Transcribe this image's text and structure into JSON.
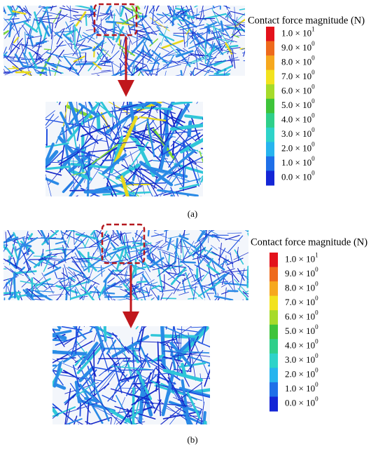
{
  "panels": [
    {
      "label": "(a)",
      "legend": {
        "title": "Contact force magnitude (N)",
        "entries": [
          {
            "mantissa": "1.0 × 10",
            "exponent": "1",
            "color": "#e3121b"
          },
          {
            "mantissa": "9.0 × 10",
            "exponent": "0",
            "color": "#ee6a1c"
          },
          {
            "mantissa": "8.0 × 10",
            "exponent": "0",
            "color": "#f6a81e"
          },
          {
            "mantissa": "7.0 × 10",
            "exponent": "0",
            "color": "#f2e21e"
          },
          {
            "mantissa": "6.0 × 10",
            "exponent": "0",
            "color": "#a6db2a"
          },
          {
            "mantissa": "5.0 × 10",
            "exponent": "0",
            "color": "#3ec43a"
          },
          {
            "mantissa": "4.0 × 10",
            "exponent": "0",
            "color": "#2fcf8a"
          },
          {
            "mantissa": "3.0 × 10",
            "exponent": "0",
            "color": "#2ed3c9"
          },
          {
            "mantissa": "2.0 × 10",
            "exponent": "0",
            "color": "#27b4ee"
          },
          {
            "mantissa": "1.0 × 10",
            "exponent": "0",
            "color": "#1f6fe8"
          },
          {
            "mantissa": "0.0 × 10",
            "exponent": "0",
            "color": "#1426d6"
          }
        ]
      }
    },
    {
      "label": "(b)",
      "legend": {
        "title": "Contact force magnitude (N)",
        "entries": [
          {
            "mantissa": "1.0 × 10",
            "exponent": "1",
            "color": "#e3121b"
          },
          {
            "mantissa": "9.0 × 10",
            "exponent": "0",
            "color": "#ee6a1c"
          },
          {
            "mantissa": "8.0 × 10",
            "exponent": "0",
            "color": "#f6a81e"
          },
          {
            "mantissa": "7.0 × 10",
            "exponent": "0",
            "color": "#f2e21e"
          },
          {
            "mantissa": "6.0 × 10",
            "exponent": "0",
            "color": "#a6db2a"
          },
          {
            "mantissa": "5.0 × 10",
            "exponent": "0",
            "color": "#3ec43a"
          },
          {
            "mantissa": "4.0 × 10",
            "exponent": "0",
            "color": "#2fcf8a"
          },
          {
            "mantissa": "3.0 × 10",
            "exponent": "0",
            "color": "#2ed3c9"
          },
          {
            "mantissa": "2.0 × 10",
            "exponent": "0",
            "color": "#27b4ee"
          },
          {
            "mantissa": "1.0 × 10",
            "exponent": "0",
            "color": "#1f6fe8"
          },
          {
            "mantissa": "0.0 × 10",
            "exponent": "0",
            "color": "#1426d6"
          }
        ]
      }
    }
  ]
}
